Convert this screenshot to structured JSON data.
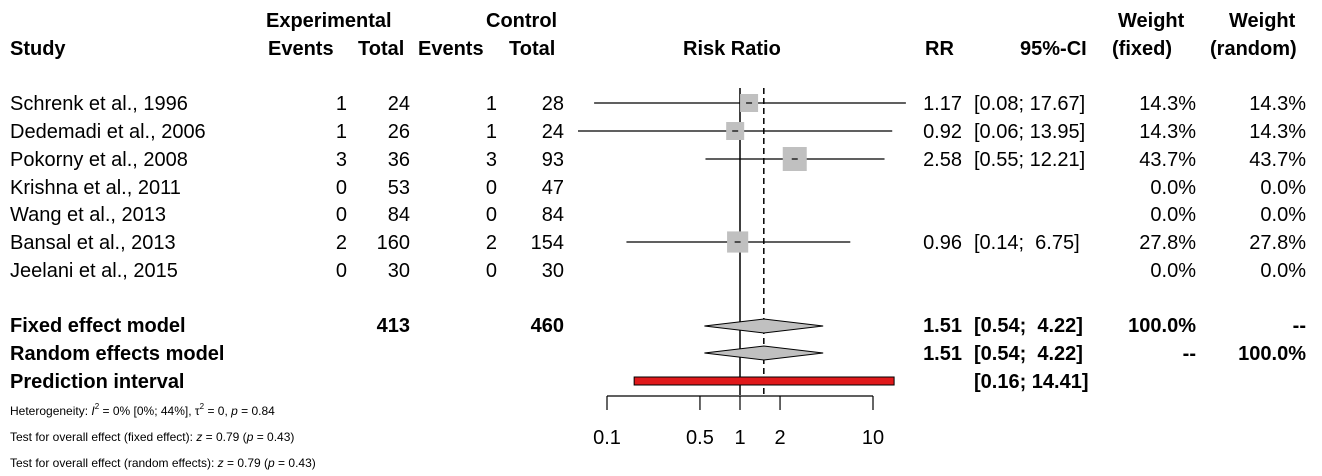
{
  "headers": {
    "study": "Study",
    "experimental": "Experimental",
    "control": "Control",
    "events": "Events",
    "total": "Total",
    "risk_ratio": "Risk Ratio",
    "rr": "RR",
    "ci": "95%-CI",
    "weight": "Weight",
    "fixed": "(fixed)",
    "random": "(random)"
  },
  "studies": [
    {
      "name": "Schrenk et al., 1996",
      "e_events": "1",
      "e_total": "24",
      "c_events": "1",
      "c_total": "28",
      "rr": "1.17",
      "ci": "[0.08; 17.67]",
      "w_fixed": "14.3%",
      "w_random": "14.3%"
    },
    {
      "name": "Dedemadi et al., 2006",
      "e_events": "1",
      "e_total": "26",
      "c_events": "1",
      "c_total": "24",
      "rr": "0.92",
      "ci": "[0.06; 13.95]",
      "w_fixed": "14.3%",
      "w_random": "14.3%"
    },
    {
      "name": "Pokorny et al., 2008",
      "e_events": "3",
      "e_total": "36",
      "c_events": "3",
      "c_total": "93",
      "rr": "2.58",
      "ci": "[0.55; 12.21]",
      "w_fixed": "43.7%",
      "w_random": "43.7%"
    },
    {
      "name": "Krishna et al., 2011",
      "e_events": "0",
      "e_total": "53",
      "c_events": "0",
      "c_total": "47",
      "rr": "",
      "ci": "",
      "w_fixed": "0.0%",
      "w_random": "0.0%"
    },
    {
      "name": "Wang et al., 2013",
      "e_events": "0",
      "e_total": "84",
      "c_events": "0",
      "c_total": "84",
      "rr": "",
      "ci": "",
      "w_fixed": "0.0%",
      "w_random": "0.0%"
    },
    {
      "name": "Bansal et al., 2013",
      "e_events": "2",
      "e_total": "160",
      "c_events": "2",
      "c_total": "154",
      "rr": "0.96",
      "ci": "[0.14;  6.75]",
      "w_fixed": "27.8%",
      "w_random": "27.8%"
    },
    {
      "name": "Jeelani et al., 2015",
      "e_events": "0",
      "e_total": "30",
      "c_events": "0",
      "c_total": "30",
      "rr": "",
      "ci": "",
      "w_fixed": "0.0%",
      "w_random": "0.0%"
    }
  ],
  "summary": {
    "fixed": {
      "label": "Fixed effect model",
      "e_total": "413",
      "c_total": "460",
      "rr": "1.51",
      "ci": "[0.54;  4.22]",
      "w_fixed": "100.0%",
      "w_random": "--"
    },
    "random": {
      "label": "Random effects model",
      "rr": "1.51",
      "ci": "[0.54;  4.22]",
      "w_fixed": "--",
      "w_random": "100.0%"
    },
    "prediction": {
      "label": "Prediction interval",
      "ci": "[0.16; 14.41]"
    }
  },
  "footnotes": {
    "heterogeneity": {
      "prefix": "Heterogeneity: ",
      "i": "I",
      "sq": "2",
      "mid": " = 0% [0%; 44%], ",
      "tau": "τ",
      "tau_sq": "2",
      "end": " = 0, ",
      "p": "p",
      "p_val": " = 0.84"
    },
    "fixed_test": {
      "prefix": "Test for overall effect (fixed effect): ",
      "z": "z",
      "z_val": " = 0.79 (",
      "p": "p",
      "p_val": " = 0.43)"
    },
    "random_test": {
      "prefix": "Test for overall effect (random effects): ",
      "z": "z",
      "z_val": " = 0.79 (",
      "p": "p",
      "p_val": " = 0.43)"
    }
  },
  "chart_data": {
    "type": "forest",
    "xlabel": "Risk Ratio",
    "xscale": "log",
    "xlim": [
      0.1,
      10
    ],
    "ticks": [
      0.1,
      0.5,
      1,
      2,
      10
    ],
    "tick_labels": [
      "0.1",
      "0.5",
      "1",
      "2",
      "10"
    ],
    "null_line": 1,
    "pooled_line": 1.51,
    "studies": [
      {
        "name": "Schrenk et al., 1996",
        "rr": 1.17,
        "lower": 0.08,
        "upper": 17.67,
        "weight": 14.3
      },
      {
        "name": "Dedemadi et al., 2006",
        "rr": 0.92,
        "lower": 0.06,
        "upper": 13.95,
        "weight": 14.3
      },
      {
        "name": "Pokorny et al., 2008",
        "rr": 2.58,
        "lower": 0.55,
        "upper": 12.21,
        "weight": 43.7
      },
      {
        "name": "Krishna et al., 2011",
        "rr": null,
        "lower": null,
        "upper": null,
        "weight": 0
      },
      {
        "name": "Wang et al., 2013",
        "rr": null,
        "lower": null,
        "upper": null,
        "weight": 0
      },
      {
        "name": "Bansal et al., 2013",
        "rr": 0.96,
        "lower": 0.14,
        "upper": 6.75,
        "weight": 27.8
      },
      {
        "name": "Jeelani et al., 2015",
        "rr": null,
        "lower": null,
        "upper": null,
        "weight": 0
      }
    ],
    "fixed": {
      "rr": 1.51,
      "lower": 0.54,
      "upper": 4.22
    },
    "random": {
      "rr": 1.51,
      "lower": 0.54,
      "upper": 4.22
    },
    "prediction": {
      "lower": 0.16,
      "upper": 14.41
    },
    "colors": {
      "box": "#c0c0c0",
      "diamond": "#c0c0c0",
      "prediction": "#e0191b",
      "line": "#000000"
    }
  }
}
